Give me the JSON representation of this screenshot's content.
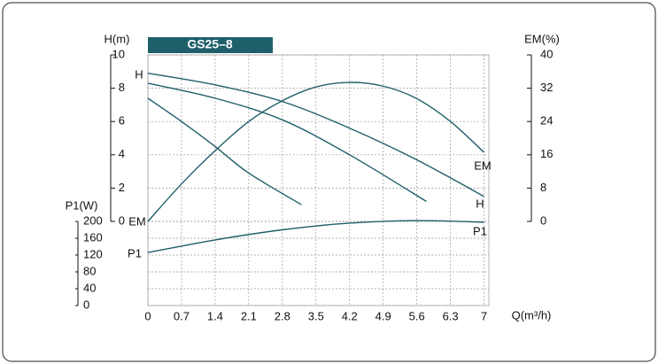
{
  "chart_data": {
    "type": "line",
    "title": "GS25–8",
    "xlabel": "Q(m³/h)",
    "ylabel": "H(m)",
    "y2label": "EM(%)",
    "y3label": "P1(W)",
    "xlim": [
      0,
      7.1
    ],
    "xticks": [
      0,
      0.7,
      1.4,
      2.1,
      2.8,
      3.5,
      4.2,
      4.9,
      5.6,
      6.3,
      7
    ],
    "ylim": [
      0,
      10
    ],
    "yticks": [
      0,
      2,
      4,
      6,
      8,
      10
    ],
    "y2lim": [
      0,
      40
    ],
    "y2ticks": [
      0,
      8,
      16,
      24,
      32,
      40
    ],
    "y3lim": [
      0,
      200
    ],
    "y3ticks": [
      0,
      40,
      80,
      120,
      160,
      200
    ],
    "grid": true,
    "color": "#1f5f6a",
    "annotations": [
      "H",
      "EM",
      "P1"
    ],
    "series": [
      {
        "name": "H",
        "axis": "y",
        "x": [
          0,
          1.4,
          2.8,
          4.2,
          5.6,
          7
        ],
        "values": [
          8.9,
          8.2,
          7.2,
          5.6,
          3.7,
          1.5
        ]
      },
      {
        "axis": "y",
        "x": [
          0,
          1.4,
          2.8,
          4.2,
          5.8
        ],
        "values": [
          8.3,
          7.4,
          6.1,
          4.0,
          1.2
        ]
      },
      {
        "axis": "y",
        "x": [
          0,
          0.7,
          1.4,
          2.1,
          3.2
        ],
        "values": [
          7.4,
          6.0,
          4.5,
          2.9,
          1.0
        ]
      },
      {
        "name": "EM",
        "axis": "y2",
        "x": [
          0,
          0.7,
          1.4,
          2.1,
          2.8,
          3.5,
          4.2,
          4.9,
          5.6,
          6.3,
          7
        ],
        "values": [
          0,
          9,
          17,
          24,
          29,
          32.3,
          33.4,
          32.5,
          29.5,
          24,
          16.6
        ]
      },
      {
        "name": "P1",
        "axis": "y3",
        "x": [
          0,
          1.4,
          2.8,
          4.2,
          5.6,
          7
        ],
        "values": [
          126,
          156,
          180,
          196,
          202,
          198
        ]
      }
    ]
  }
}
